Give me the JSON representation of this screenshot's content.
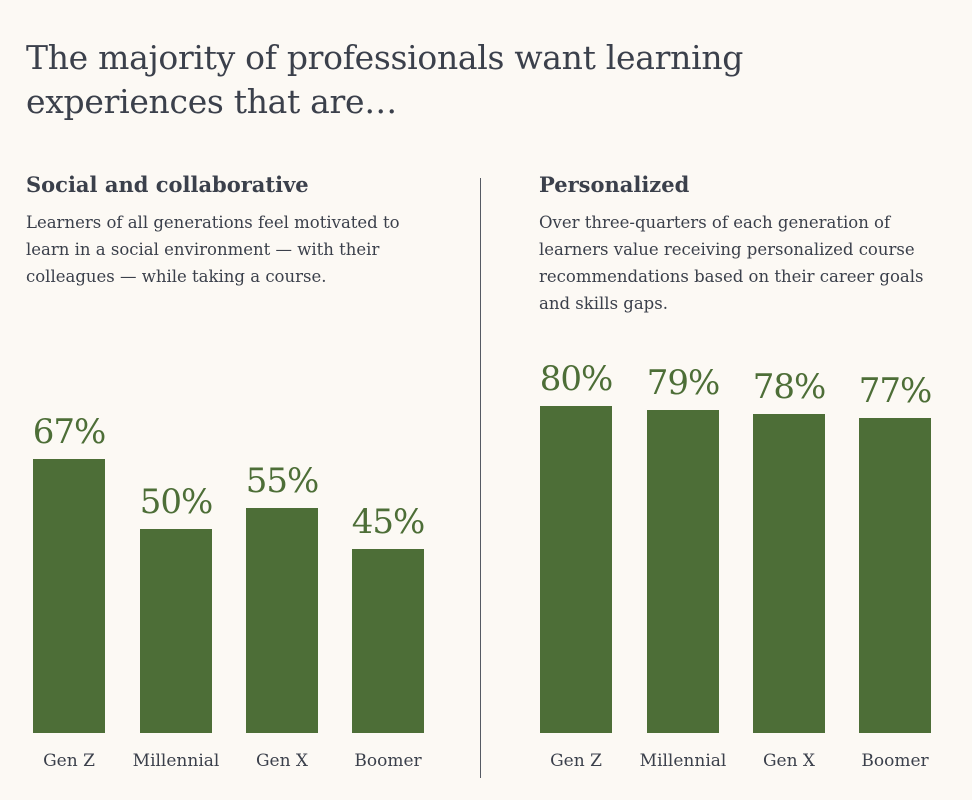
{
  "title": "The majority of professionals want learning experiences that are…",
  "chart_data": [
    {
      "type": "bar",
      "title": "Social and collaborative",
      "subtitle": "Learners of all generations feel motivated to learn in a social environment — with their colleagues — while taking a course.",
      "categories": [
        "Gen Z",
        "Millennial",
        "Gen X",
        "Boomer"
      ],
      "values": [
        67,
        50,
        55,
        45
      ],
      "data_labels": [
        "67%",
        "50%",
        "55%",
        "45%"
      ],
      "ylim": [
        0,
        100
      ],
      "grid": false,
      "color": "#4d6e37"
    },
    {
      "type": "bar",
      "title": "Personalized",
      "subtitle": "Over three-quarters of each generation of learners value receiving personalized course recommendations based on their career goals and skills gaps.",
      "categories": [
        "Gen Z",
        "Millennial",
        "Gen X",
        "Boomer"
      ],
      "values": [
        80,
        79,
        78,
        77
      ],
      "data_labels": [
        "80%",
        "79%",
        "78%",
        "77%"
      ],
      "ylim": [
        0,
        100
      ],
      "grid": false,
      "color": "#4d6e37"
    }
  ]
}
